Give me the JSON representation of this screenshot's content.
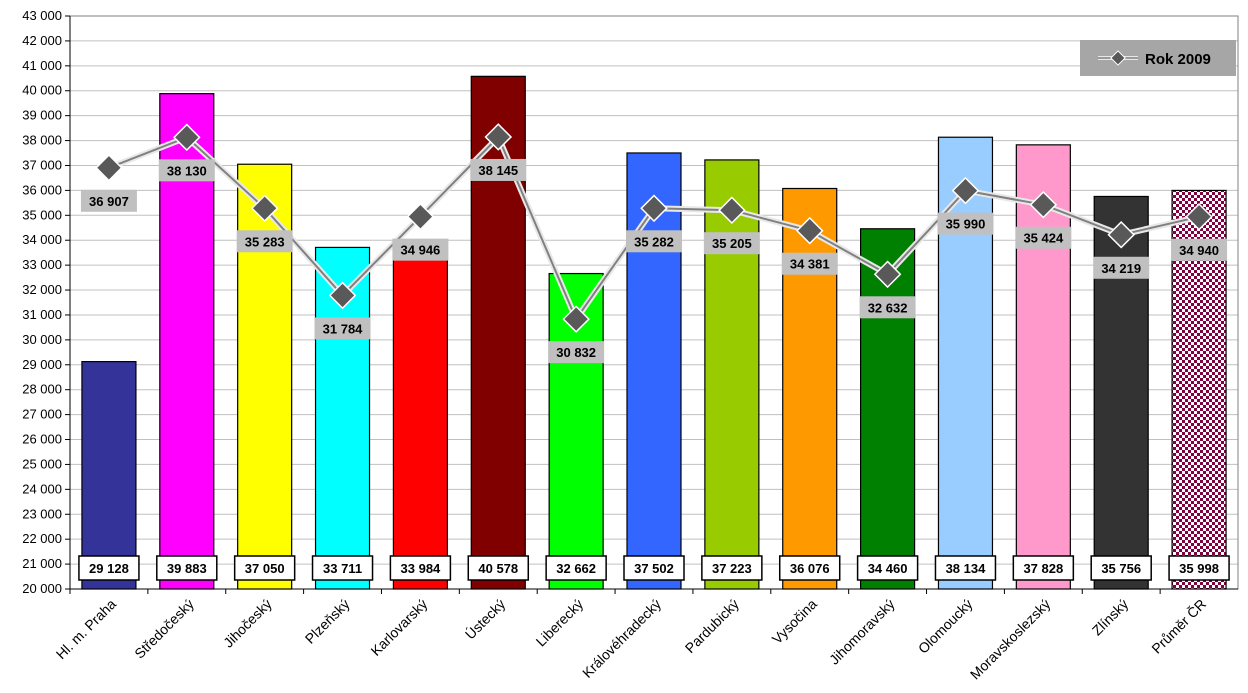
{
  "chart_data": {
    "type": "bar",
    "categories": [
      "Hl. m. Praha",
      "Středočeský",
      "Jihočeský",
      "Plzeňský",
      "Karlovarský",
      "Ústecký",
      "Liberecký",
      "Královéhradecký",
      "Pardubický",
      "Vysočina",
      "Jihomoravský",
      "Olomoucký",
      "Moravskoslezský",
      "Zlínský",
      "Průměr ČR"
    ],
    "series": [
      {
        "values": [
          29128,
          39883,
          37050,
          33711,
          33984,
          40578,
          32662,
          37502,
          37223,
          36076,
          34460,
          38134,
          37828,
          35756,
          35998
        ],
        "labels": [
          "29 128",
          "39 883",
          "37 050",
          "33 711",
          "33 984",
          "40 578",
          "32 662",
          "37 502",
          "37 223",
          "36 076",
          "34 460",
          "38 134",
          "37 828",
          "35 756",
          "35 998"
        ],
        "colors": [
          "#333399",
          "#ff00ff",
          "#ffff00",
          "#00ffff",
          "#ff0000",
          "#800000",
          "#00ff00",
          "#3366ff",
          "#99cc00",
          "#ff9900",
          "#008000",
          "#99ccff",
          "#ff99cc",
          "#333333",
          "pattern"
        ]
      },
      {
        "name": "Rok 2009",
        "type": "line",
        "values": [
          36907,
          38130,
          35283,
          31784,
          34946,
          38145,
          30832,
          35282,
          35205,
          34381,
          32632,
          35990,
          35424,
          34219,
          34940
        ],
        "labels": [
          "36 907",
          "38 130",
          "35 283",
          "31 784",
          "34 946",
          "38 145",
          "30 832",
          "35 282",
          "35 205",
          "34 381",
          "32 632",
          "35 990",
          "35 424",
          "34 219",
          "34 940"
        ]
      }
    ],
    "yticks": [
      "20 000",
      "21 000",
      "22 000",
      "23 000",
      "24 000",
      "25 000",
      "26 000",
      "27 000",
      "28 000",
      "29 000",
      "30 000",
      "31 000",
      "32 000",
      "33 000",
      "34 000",
      "35 000",
      "36 000",
      "37 000",
      "38 000",
      "39 000",
      "40 000",
      "41 000",
      "42 000",
      "43 000"
    ],
    "ylim": [
      20000,
      43000
    ],
    "ystep": 1000,
    "grid": true,
    "legend": {
      "position": "top-right",
      "entry": "Rok 2009"
    },
    "title": "",
    "xlabel": "",
    "ylabel": "",
    "colors": {
      "gridline": "#c0c0c0",
      "line": "#808080",
      "marker": "#595959",
      "label_box": "#c0c0c0",
      "legend_bg": "#a6a6a6",
      "pattern_color": "#800040"
    }
  }
}
